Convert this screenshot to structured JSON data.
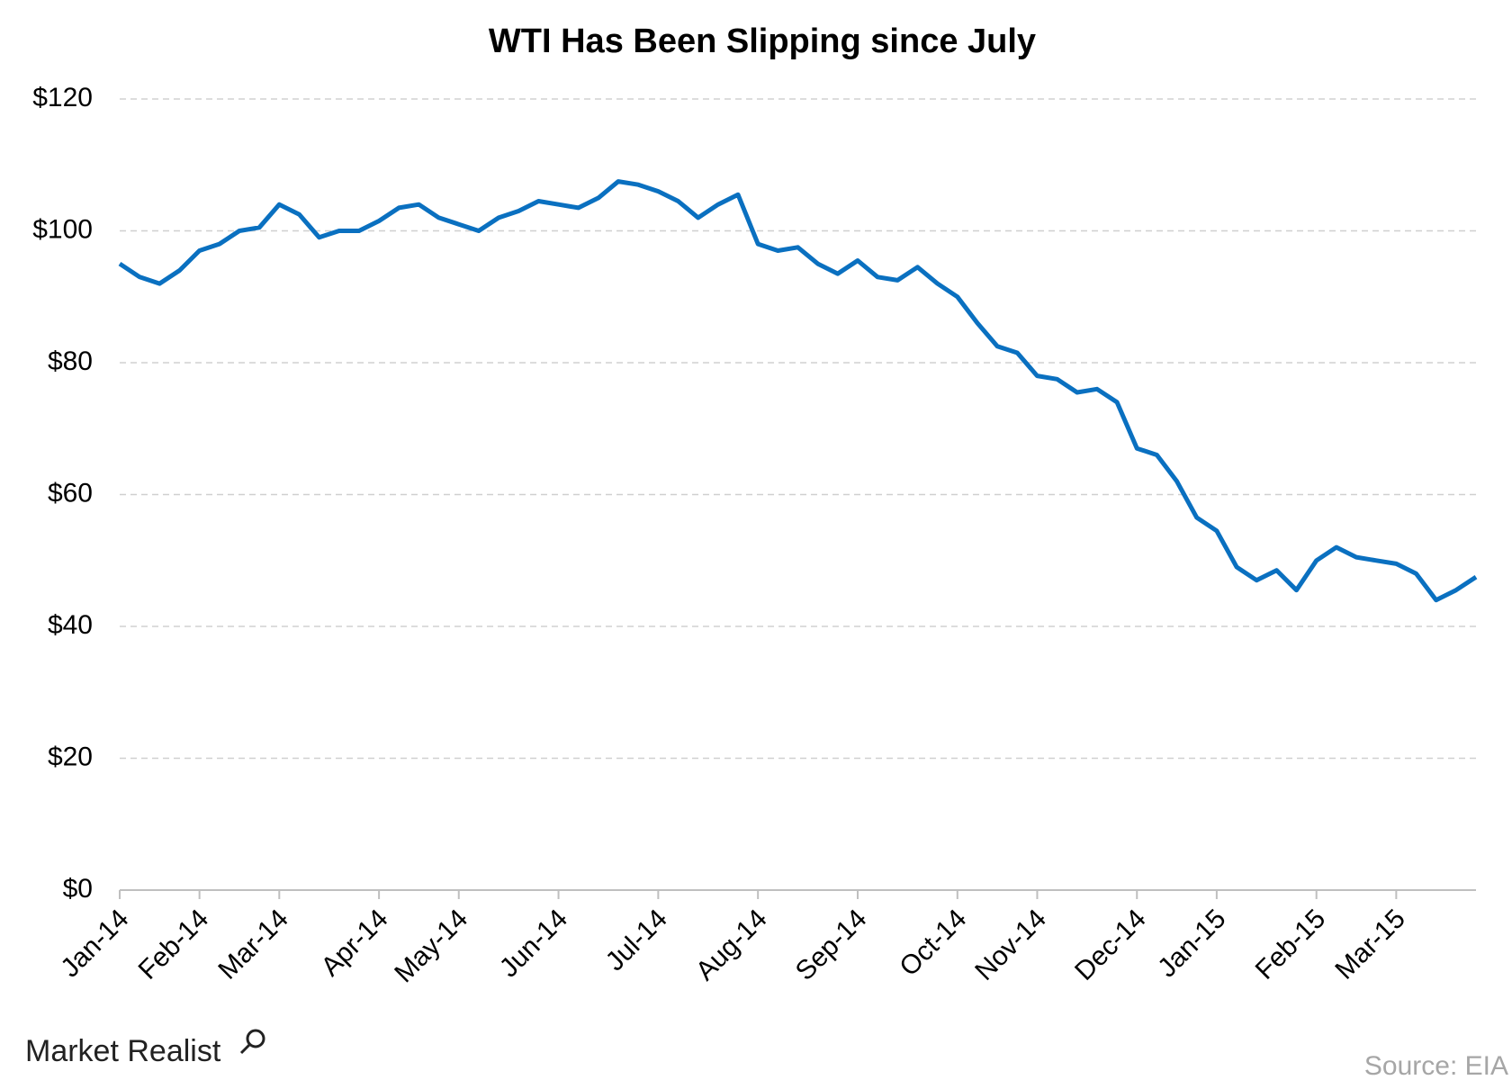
{
  "chart_data": {
    "type": "line",
    "title": "WTI Has Been Slipping since July",
    "source": "Source: EIA",
    "brand": "Market Realist",
    "categories": [
      "Jan-14",
      null,
      null,
      null,
      "Feb-14",
      null,
      null,
      null,
      "Mar-14",
      null,
      null,
      null,
      null,
      "Apr-14",
      null,
      null,
      null,
      "May-14",
      null,
      null,
      null,
      null,
      "Jun-14",
      null,
      null,
      null,
      null,
      "Jul-14",
      null,
      null,
      null,
      null,
      "Aug-14",
      null,
      null,
      null,
      null,
      "Sep-14",
      null,
      null,
      null,
      null,
      "Oct-14",
      null,
      null,
      null,
      "Nov-14",
      null,
      null,
      null,
      null,
      "Dec-14",
      null,
      null,
      null,
      "Jan-15",
      null,
      null,
      null,
      null,
      "Feb-15",
      null,
      null,
      null,
      "Mar-15",
      null,
      null,
      null,
      null
    ],
    "values": [
      95,
      93,
      92,
      94,
      97,
      98,
      100,
      100.5,
      104,
      102.5,
      99,
      100,
      100,
      101.5,
      103.5,
      104,
      102,
      101,
      100,
      102,
      103,
      104.5,
      104,
      103.5,
      105,
      107.5,
      107,
      106,
      104.5,
      102,
      104,
      105.5,
      98,
      97,
      97.5,
      95,
      93.5,
      95.5,
      93,
      92.5,
      94.5,
      92,
      90,
      86,
      82.5,
      81.5,
      78,
      77.5,
      75.5,
      76,
      74,
      67,
      66,
      62,
      56.5,
      54.5,
      49,
      47,
      48.5,
      45.5,
      50,
      52,
      50.5,
      50,
      49.5,
      48,
      44,
      45.5,
      47.5
    ],
    "color": "#0a70c0",
    "ylim": [
      0,
      120
    ],
    "yticks": [
      {
        "value": 0,
        "label": "$0"
      },
      {
        "value": 20,
        "label": "$20"
      },
      {
        "value": 40,
        "label": "$40"
      },
      {
        "value": 60,
        "label": "$60"
      },
      {
        "value": 80,
        "label": "$80"
      },
      {
        "value": 100,
        "label": "$100"
      },
      {
        "value": 120,
        "label": "$120"
      }
    ],
    "grid": true
  }
}
